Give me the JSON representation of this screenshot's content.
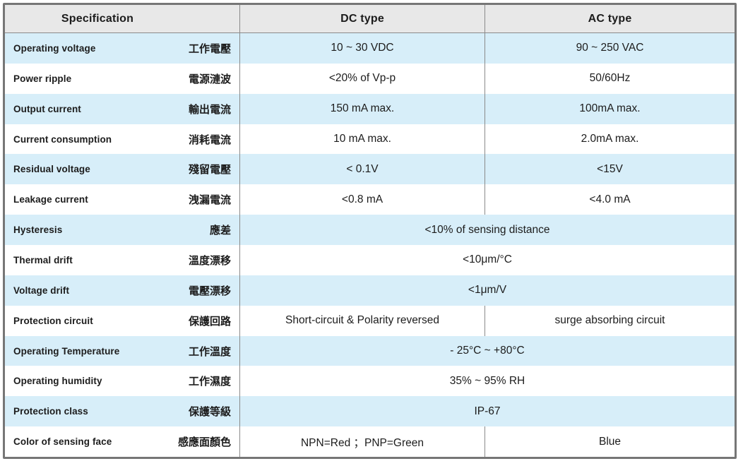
{
  "table": {
    "header": {
      "spec": "Specification",
      "dc": "DC type",
      "ac": "AC type"
    },
    "rows": [
      {
        "en": "Operating voltage",
        "zh": "工作電壓",
        "dc": "10 ~ 30 VDC",
        "ac": "90 ~ 250 VAC",
        "merged": false
      },
      {
        "en": "Power ripple",
        "zh": "電源漣波",
        "dc": "<20% of Vp-p",
        "ac": "50/60Hz",
        "merged": false
      },
      {
        "en": "Output current",
        "zh": "輸出電流",
        "dc": "150 mA max.",
        "ac": "100mA max.",
        "merged": false
      },
      {
        "en": "Current consumption",
        "zh": "消耗電流",
        "dc": "10 mA max.",
        "ac": "2.0mA max.",
        "merged": false
      },
      {
        "en": "Residual voltage",
        "zh": "殘留電壓",
        "dc": "< 0.1V",
        "ac": "<15V",
        "merged": false
      },
      {
        "en": "Leakage current",
        "zh": "洩漏電流",
        "dc": "<0.8 mA",
        "ac": "<4.0 mA",
        "merged": false
      },
      {
        "en": "Hysteresis",
        "zh": "應差",
        "value": "<10% of sensing distance",
        "merged": true
      },
      {
        "en": "Thermal drift",
        "zh": "溫度漂移",
        "value": "<10μm/°C",
        "merged": true
      },
      {
        "en": "Voltage drift",
        "zh": "電壓漂移",
        "value": "<1μm/V",
        "merged": true
      },
      {
        "en": "Protection circuit",
        "zh": "保護回路",
        "dc": "Short-circuit & Polarity reversed",
        "ac": "surge absorbing circuit",
        "merged": false
      },
      {
        "en": "Operating Temperature",
        "zh": "工作溫度",
        "value": "- 25°C ~ +80°C",
        "merged": true
      },
      {
        "en": "Operating humidity",
        "zh": "工作濕度",
        "value": "35% ~ 95% RH",
        "merged": true
      },
      {
        "en": "Protection class",
        "zh": "保護等級",
        "value": "IP-67",
        "merged": true
      },
      {
        "en": "Color of sensing face",
        "zh": "感應面顏色",
        "dc": "NPN=Red ；PNP=Green",
        "ac": "Blue",
        "merged": false
      }
    ],
    "colors": {
      "header_bg": "#e8e8e8",
      "row_alt_bg": "#d7eef9",
      "row_bg": "#ffffff",
      "outer_border": "#767676",
      "divider": "#8a8a8a",
      "text": "#1c1c1c"
    }
  }
}
